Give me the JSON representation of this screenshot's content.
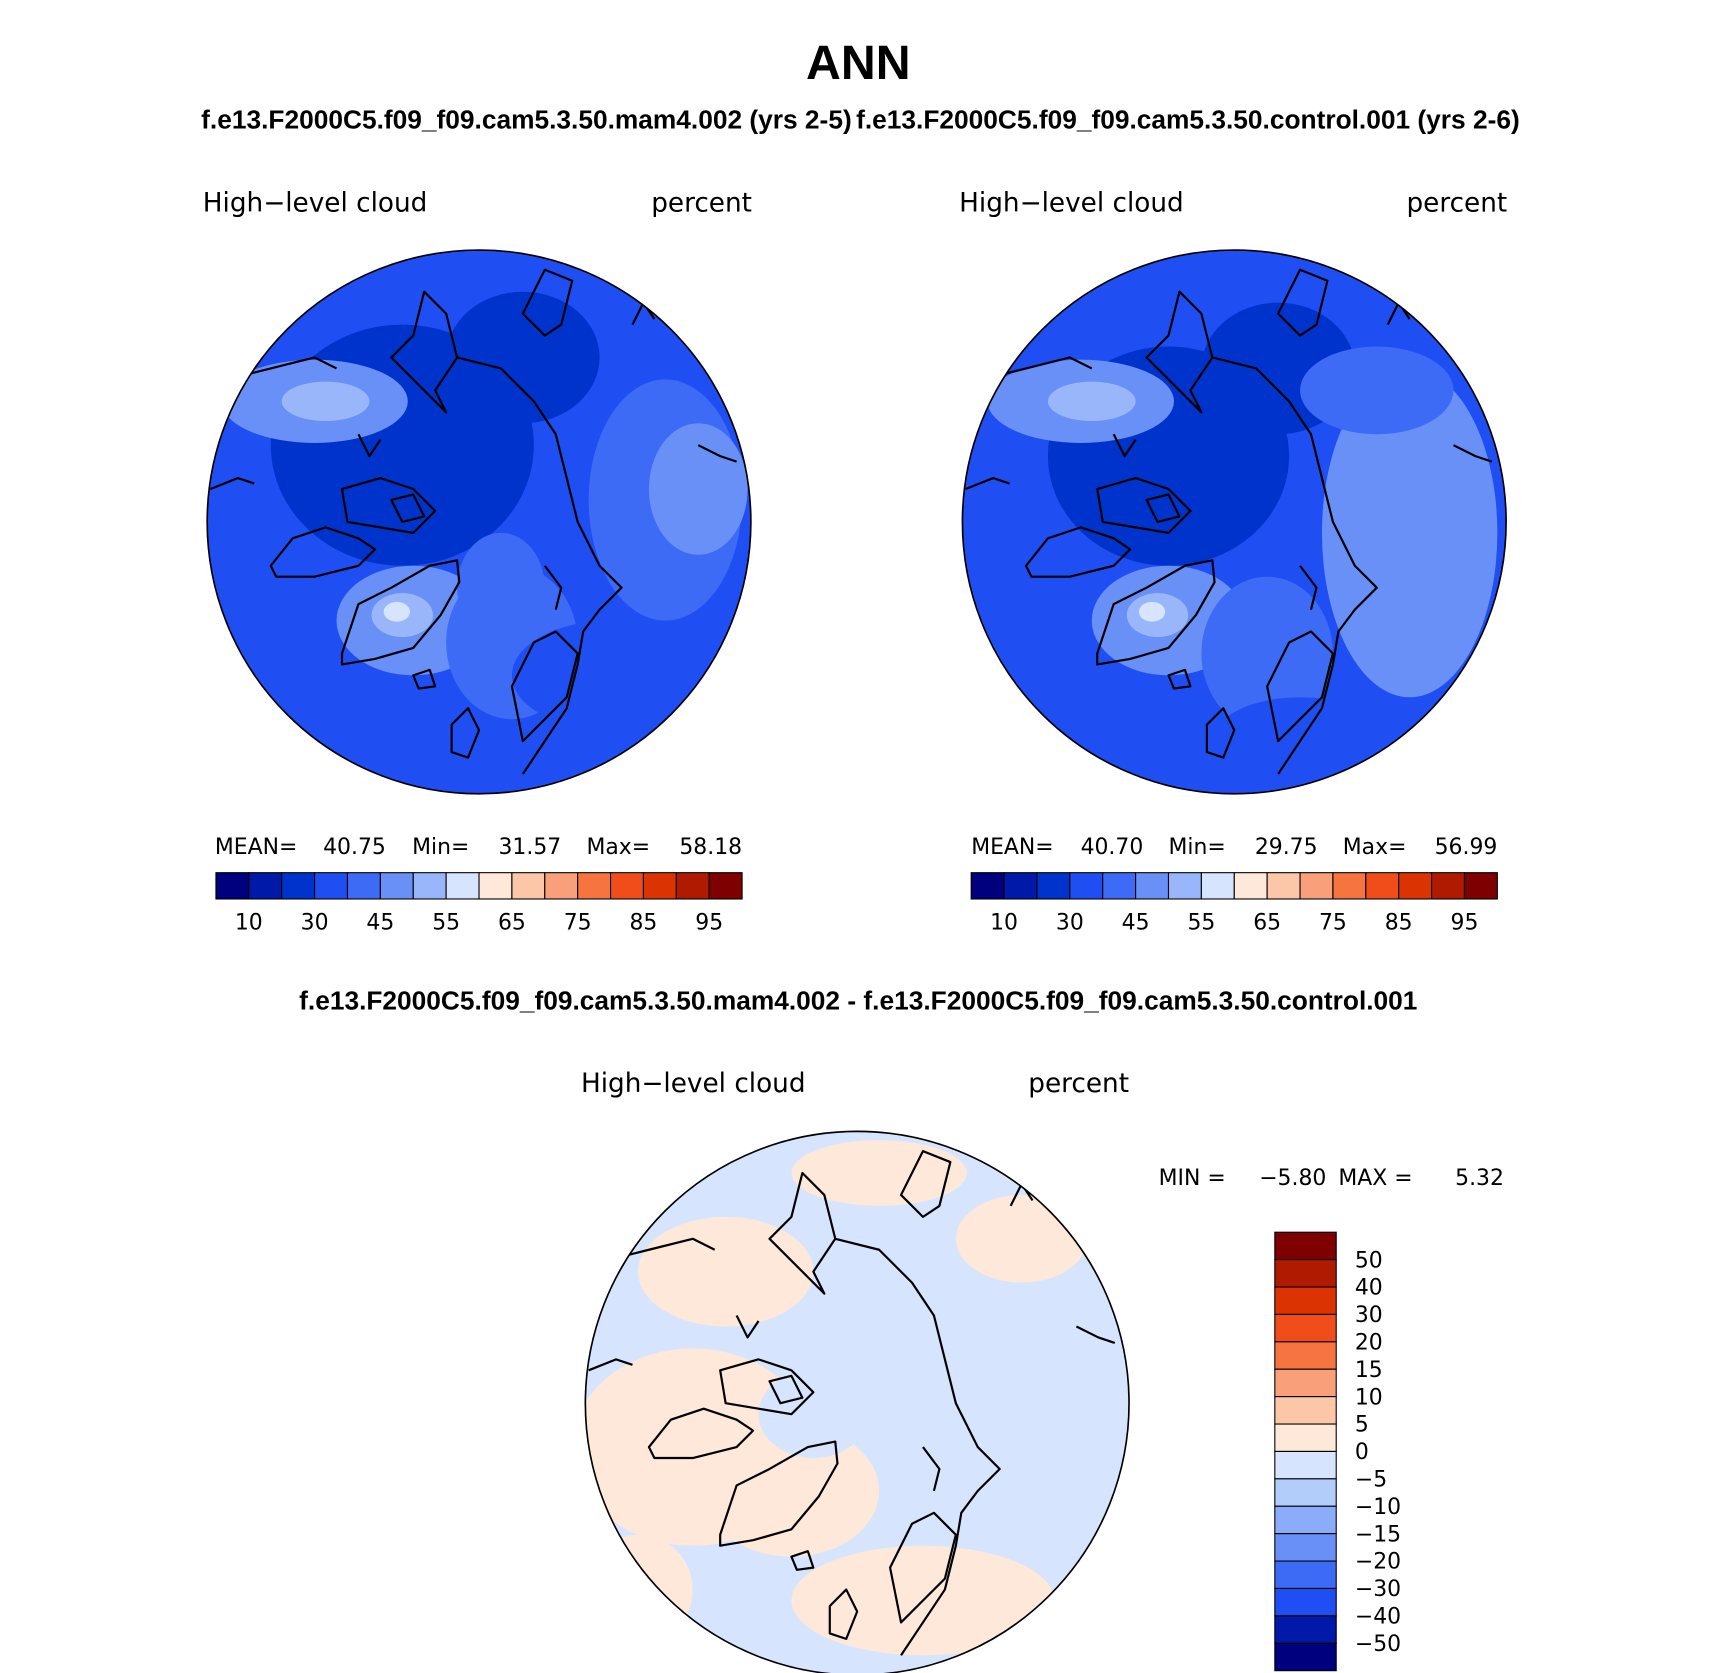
{
  "header": {
    "title": "ANN",
    "subtitle_left": "f.e13.F2000C5.f09_f09.cam5.3.50.mam4.002 (yrs 2-5)",
    "subtitle_right": "f.e13.F2000C5.f09_f09.cam5.3.50.control.001 (yrs 2-6)"
  },
  "difference_title": "f.e13.F2000C5.f09_f09.cam5.3.50.mam4.002 - f.e13.F2000C5.f09_f09.cam5.3.50.control.001",
  "panels": [
    {
      "title": "High−level cloud",
      "units": "percent",
      "stats": [
        {
          "label": "MEAN=",
          "value": "40.75"
        },
        {
          "label": "Min=",
          "value": "31.57"
        },
        {
          "label": "Max=",
          "value": "58.18"
        }
      ],
      "colorbar": {
        "labels": [
          "10",
          "30",
          "45",
          "55",
          "65",
          "75",
          "85",
          "95"
        ],
        "colors": [
          "#00007f",
          "#0019a8",
          "#0033cc",
          "#1f4ff2",
          "#3d6bf5",
          "#6890f7",
          "#9ab6fb",
          "#d6e5fd",
          "#fde8d9",
          "#fcc6a8",
          "#f9a07a",
          "#f6743f",
          "#f04d1a",
          "#dc3302",
          "#b01a00",
          "#7f0000"
        ]
      }
    },
    {
      "title": "High−level cloud",
      "units": "percent",
      "stats": [
        {
          "label": "MEAN=",
          "value": "40.70"
        },
        {
          "label": "Min=",
          "value": "29.75"
        },
        {
          "label": "Max=",
          "value": "56.99"
        }
      ],
      "colorbar": {
        "labels": [
          "10",
          "30",
          "45",
          "55",
          "65",
          "75",
          "85",
          "95"
        ],
        "colors": [
          "#00007f",
          "#0019a8",
          "#0033cc",
          "#1f4ff2",
          "#3d6bf5",
          "#6890f7",
          "#9ab6fb",
          "#d6e5fd",
          "#fde8d9",
          "#fcc6a8",
          "#f9a07a",
          "#f6743f",
          "#f04d1a",
          "#dc3302",
          "#b01a00",
          "#7f0000"
        ]
      }
    },
    {
      "title": "High−level cloud",
      "units": "percent",
      "stats": [
        {
          "label": "MIN =",
          "value": "−5.80"
        },
        {
          "label": "MAX =",
          "value": "5.32"
        }
      ],
      "colorbar": {
        "labels": [
          "50",
          "40",
          "30",
          "20",
          "15",
          "10",
          "5",
          "0",
          "−5",
          "−10",
          "−15",
          "−20",
          "−30",
          "−40",
          "−50"
        ],
        "colors": [
          "#7f0000",
          "#b01a00",
          "#dc3302",
          "#f04d1a",
          "#f6743f",
          "#f9a07a",
          "#fcc6a8",
          "#fde8d9",
          "#d6e5fd",
          "#b3cdfb",
          "#8aacfa",
          "#6890f7",
          "#3d6bf5",
          "#1f4ff2",
          "#0019a8",
          "#00007f"
        ]
      }
    }
  ]
}
